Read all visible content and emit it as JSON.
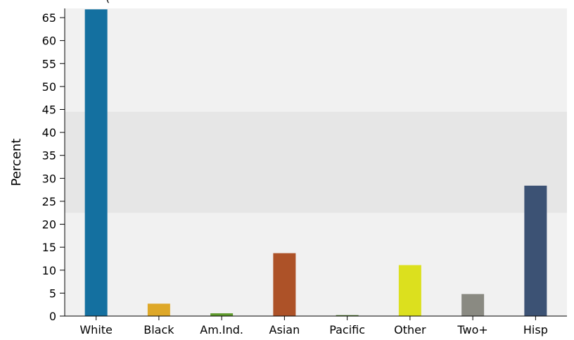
{
  "chart_data": {
    "type": "bar",
    "title": "",
    "xlabel": "",
    "ylabel": "Percent",
    "categories": [
      "White",
      "Black",
      "Am.Ind.",
      "Asian",
      "Pacific",
      "Other",
      "Two+",
      "Hisp"
    ],
    "values": [
      66.8,
      2.7,
      0.6,
      13.7,
      0.2,
      11.1,
      4.8,
      28.4
    ],
    "colors": [
      "#1470a0",
      "#dea828",
      "#5e9a2c",
      "#ad5228",
      "#4c7a2a",
      "#dce01e",
      "#8a8a82",
      "#3c5274"
    ],
    "ylim": [
      0,
      67
    ],
    "yticks": [
      0,
      5,
      10,
      15,
      20,
      25,
      30,
      35,
      40,
      45,
      50,
      55,
      60,
      65
    ],
    "band": [
      22.5,
      44.5
    ],
    "background": "#f1f1f1",
    "band_color": "#e6e6e6",
    "grid": false,
    "legend": "none"
  }
}
